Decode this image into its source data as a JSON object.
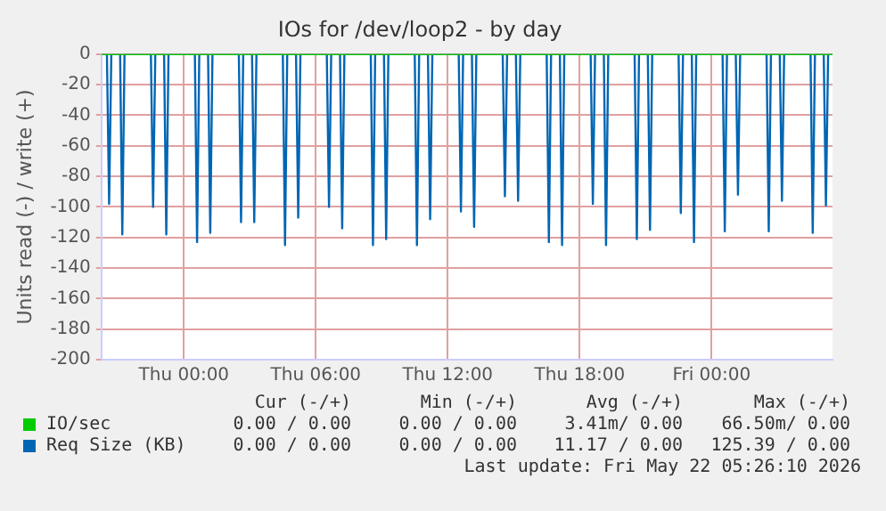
{
  "chart_data": {
    "type": "line",
    "title": "IOs for /dev/loop2 - by day",
    "ylabel": "Units read (-) / write (+)",
    "xlim": [
      "2026-05-20T20:15",
      "2026-05-22T05:30"
    ],
    "xticks": [
      {
        "value": "2026-05-21T00:00",
        "label": "Thu 00:00"
      },
      {
        "value": "2026-05-21T06:00",
        "label": "Thu 06:00"
      },
      {
        "value": "2026-05-21T12:00",
        "label": "Thu 12:00"
      },
      {
        "value": "2026-05-21T18:00",
        "label": "Thu 18:00"
      },
      {
        "value": "2026-05-22T00:00",
        "label": "Fri 00:00"
      }
    ],
    "ylim": [
      -200,
      0
    ],
    "yticks": [
      -200,
      -180,
      -160,
      -140,
      -120,
      -100,
      -80,
      -60,
      -40,
      -20,
      0
    ],
    "grid": true,
    "legend": "bottom",
    "marker": "none",
    "series": [
      {
        "name": "IO/sec",
        "color": "#00cc00",
        "x": [
          "2026-05-20T20:15",
          "2026-05-22T05:30"
        ],
        "values": [
          0,
          0
        ]
      },
      {
        "name": "Req Size (KB)",
        "color": "#0066b3",
        "x": [
          "2026-05-20T20:15",
          "2026-05-20T20:30",
          "2026-05-20T20:36",
          "2026-05-20T20:42",
          "2026-05-20T21:06",
          "2026-05-20T21:12",
          "2026-05-20T21:18",
          "2026-05-20T22:30",
          "2026-05-20T22:36",
          "2026-05-20T22:42",
          "2026-05-20T23:06",
          "2026-05-20T23:12",
          "2026-05-20T23:18",
          "2026-05-21T00:30",
          "2026-05-21T00:36",
          "2026-05-21T00:42",
          "2026-05-21T01:06",
          "2026-05-21T01:12",
          "2026-05-21T01:18",
          "2026-05-21T02:30",
          "2026-05-21T02:36",
          "2026-05-21T02:42",
          "2026-05-21T03:06",
          "2026-05-21T03:12",
          "2026-05-21T03:18",
          "2026-05-21T04:30",
          "2026-05-21T04:36",
          "2026-05-21T04:42",
          "2026-05-21T05:06",
          "2026-05-21T05:12",
          "2026-05-21T05:18",
          "2026-05-21T06:30",
          "2026-05-21T06:36",
          "2026-05-21T06:42",
          "2026-05-21T07:06",
          "2026-05-21T07:12",
          "2026-05-21T07:18",
          "2026-05-21T08:30",
          "2026-05-21T08:36",
          "2026-05-21T08:42",
          "2026-05-21T09:06",
          "2026-05-21T09:12",
          "2026-05-21T09:18",
          "2026-05-21T10:30",
          "2026-05-21T10:36",
          "2026-05-21T10:42",
          "2026-05-21T11:06",
          "2026-05-21T11:12",
          "2026-05-21T11:18",
          "2026-05-21T12:30",
          "2026-05-21T12:36",
          "2026-05-21T12:42",
          "2026-05-21T13:06",
          "2026-05-21T13:12",
          "2026-05-21T13:18",
          "2026-05-21T14:30",
          "2026-05-21T14:36",
          "2026-05-21T14:42",
          "2026-05-21T15:06",
          "2026-05-21T15:12",
          "2026-05-21T15:18",
          "2026-05-21T16:30",
          "2026-05-21T16:36",
          "2026-05-21T16:42",
          "2026-05-21T17:06",
          "2026-05-21T17:12",
          "2026-05-21T17:18",
          "2026-05-21T18:30",
          "2026-05-21T18:36",
          "2026-05-21T18:42",
          "2026-05-21T19:06",
          "2026-05-21T19:12",
          "2026-05-21T19:18",
          "2026-05-21T20:30",
          "2026-05-21T20:36",
          "2026-05-21T20:42",
          "2026-05-21T21:06",
          "2026-05-21T21:12",
          "2026-05-21T21:18",
          "2026-05-21T22:30",
          "2026-05-21T22:36",
          "2026-05-21T22:42",
          "2026-05-21T23:06",
          "2026-05-21T23:12",
          "2026-05-21T23:18",
          "2026-05-22T00:30",
          "2026-05-22T00:36",
          "2026-05-22T00:42",
          "2026-05-22T01:06",
          "2026-05-22T01:12",
          "2026-05-22T01:18",
          "2026-05-22T02:30",
          "2026-05-22T02:36",
          "2026-05-22T02:42",
          "2026-05-22T03:06",
          "2026-05-22T03:12",
          "2026-05-22T03:18",
          "2026-05-22T04:30",
          "2026-05-22T04:36",
          "2026-05-22T04:42",
          "2026-05-22T05:06",
          "2026-05-22T05:12",
          "2026-05-22T05:18",
          "2026-05-22T05:30"
        ],
        "values": [
          0,
          0,
          -98,
          0,
          0,
          -118,
          0,
          0,
          -100,
          0,
          0,
          -118,
          0,
          0,
          -123,
          0,
          0,
          -117,
          0,
          0,
          -110,
          0,
          0,
          -110,
          0,
          0,
          -125,
          0,
          0,
          -107,
          0,
          0,
          -100,
          0,
          0,
          -114,
          0,
          0,
          -125,
          0,
          0,
          -121,
          0,
          0,
          -125,
          0,
          0,
          -108,
          0,
          0,
          -103,
          0,
          0,
          -113,
          0,
          0,
          -93,
          0,
          0,
          -96,
          0,
          0,
          -123,
          0,
          0,
          -125,
          0,
          0,
          -98,
          0,
          0,
          -125,
          0,
          0,
          -121,
          0,
          0,
          -115,
          0,
          0,
          -104,
          0,
          0,
          -123,
          0,
          0,
          -116,
          0,
          0,
          -92,
          0,
          0,
          -116,
          0,
          0,
          -96,
          0,
          0,
          -117,
          0,
          0,
          -99,
          0,
          0
        ]
      }
    ],
    "annotations": [
      "Cur (-/+)",
      "Min (-/+)",
      "Avg (-/+)",
      "Max (-/+)",
      "0.00 / 0.00",
      "0.00 / 0.00",
      "3.41m/ 0.00",
      "66.50m/ 0.00",
      "0.00 / 0.00",
      "0.00 / 0.00",
      "11.17 / 0.00",
      "125.39 / 0.00",
      "Last update: Fri May 22 05:26:10 2026"
    ]
  }
}
